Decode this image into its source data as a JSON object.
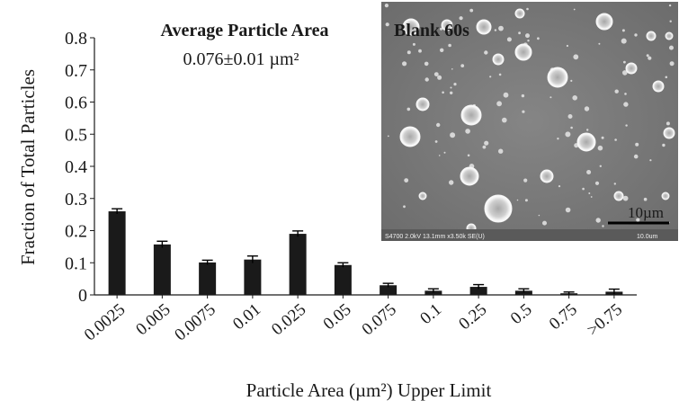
{
  "chart_data": {
    "type": "bar",
    "title": "",
    "xlabel": "Particle Area  (µm²) Upper Limit",
    "ylabel": "Fraction of Total Particles",
    "ylim": [
      0,
      0.8
    ],
    "yticks": [
      "0",
      "0.1",
      "0.2",
      "0.3",
      "0.4",
      "0.5",
      "0.6",
      "0.7",
      "0.8"
    ],
    "grid": false,
    "categories": [
      "0.0025",
      "0.005",
      "0.0075",
      "0.01",
      "0.025",
      "0.05",
      "0.075",
      "0.1",
      "0.25",
      "0.5",
      "0.75",
      ">0.75"
    ],
    "values": [
      0.26,
      0.157,
      0.101,
      0.11,
      0.19,
      0.093,
      0.03,
      0.013,
      0.025,
      0.013,
      0.005,
      0.01
    ],
    "errors": [
      0.008,
      0.01,
      0.007,
      0.011,
      0.009,
      0.007,
      0.006,
      0.006,
      0.007,
      0.006,
      0.004,
      0.008
    ],
    "bar_color": "#1a1a1a",
    "annotations": {
      "avg_title": "Average Particle Area",
      "avg_value": "0.076±0.01 µm²"
    }
  },
  "inset": {
    "label": "Blank 60s",
    "scale_bar_label": "10µm",
    "caption_left": "S4700 2.0kV 13.1mm x3.50k SE(U)",
    "caption_right": "10.0um"
  }
}
